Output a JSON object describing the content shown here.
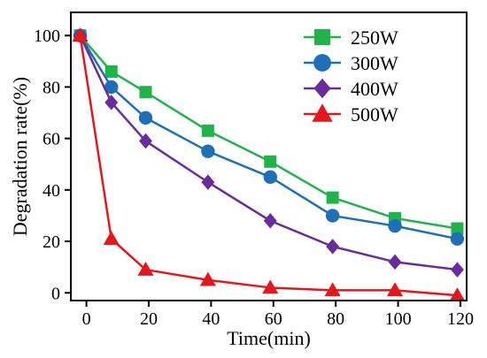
{
  "chart_data": {
    "type": "line",
    "xlabel": "Time(min)",
    "ylabel": "Degradation rate(%)",
    "xlim": [
      -5,
      122
    ],
    "ylim": [
      -3,
      109
    ],
    "xticks": [
      0,
      20,
      40,
      60,
      80,
      100,
      120
    ],
    "yticks": [
      0,
      20,
      40,
      60,
      80,
      100
    ],
    "grid": false,
    "legend": "top-right",
    "series": [
      {
        "name": "250W",
        "color": "#1fb34a",
        "marker": "square",
        "x": [
          -2,
          8,
          19,
          39,
          59,
          79,
          99,
          119
        ],
        "y": [
          100,
          86,
          78,
          63,
          51,
          37,
          29,
          25
        ]
      },
      {
        "name": "300W",
        "color": "#1d6fb8",
        "marker": "circle",
        "x": [
          -2,
          8,
          19,
          39,
          59,
          79,
          99,
          119
        ],
        "y": [
          100,
          80,
          68,
          55,
          45,
          30,
          26,
          21
        ]
      },
      {
        "name": "400W",
        "color": "#6a2c9c",
        "marker": "diamond",
        "x": [
          -2,
          8,
          19,
          39,
          59,
          79,
          99,
          119
        ],
        "y": [
          100,
          74,
          59,
          43,
          28,
          18,
          12,
          9
        ]
      },
      {
        "name": "500W",
        "color": "#e3171d",
        "marker": "triangle",
        "x": [
          -2,
          8,
          19,
          39,
          59,
          79,
          99,
          119
        ],
        "y": [
          100,
          21,
          9,
          5,
          2,
          1,
          1,
          -1
        ]
      }
    ]
  }
}
